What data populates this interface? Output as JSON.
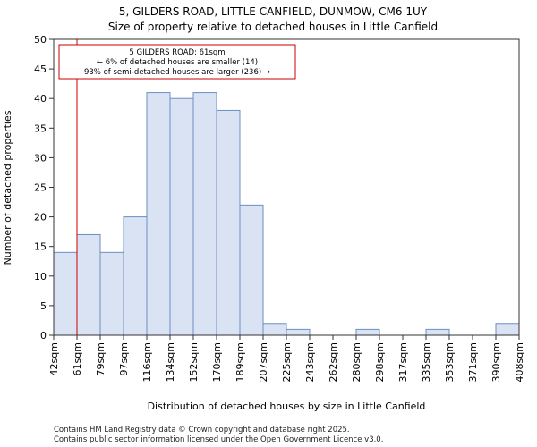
{
  "chart_data": {
    "type": "bar",
    "title": "5, GILDERS ROAD, LITTLE CANFIELD, DUNMOW, CM6 1UY",
    "subtitle": "Size of property relative to detached houses in Little Canfield",
    "xlabel": "Distribution of detached houses by size in Little Canfield",
    "ylabel": "Number of detached properties",
    "ylim": [
      0,
      50
    ],
    "yticks": [
      0,
      5,
      10,
      15,
      20,
      25,
      30,
      35,
      40,
      45,
      50
    ],
    "bin_edges": [
      "42sqm",
      "61sqm",
      "79sqm",
      "97sqm",
      "116sqm",
      "134sqm",
      "152sqm",
      "170sqm",
      "189sqm",
      "207sqm",
      "225sqm",
      "243sqm",
      "262sqm",
      "280sqm",
      "298sqm",
      "317sqm",
      "335sqm",
      "353sqm",
      "371sqm",
      "390sqm",
      "408sqm"
    ],
    "values": [
      14,
      17,
      14,
      20,
      41,
      40,
      41,
      38,
      22,
      2,
      1,
      0,
      0,
      1,
      0,
      0,
      1,
      0,
      0,
      2
    ],
    "marker": {
      "position_bin_edge": 1,
      "label": "5 GILDERS ROAD: 61sqm",
      "line2": "← 6% of detached houses are smaller (14)",
      "line3": "93% of semi-detached houses are larger (236) →",
      "color": "#cc0000"
    },
    "bar_fill": "#dae3f3",
    "bar_stroke": "#6a8fc4",
    "grid": false
  },
  "footer": {
    "line1": "Contains HM Land Registry data © Crown copyright and database right 2025.",
    "line2": "Contains public sector information licensed under the Open Government Licence v3.0."
  }
}
